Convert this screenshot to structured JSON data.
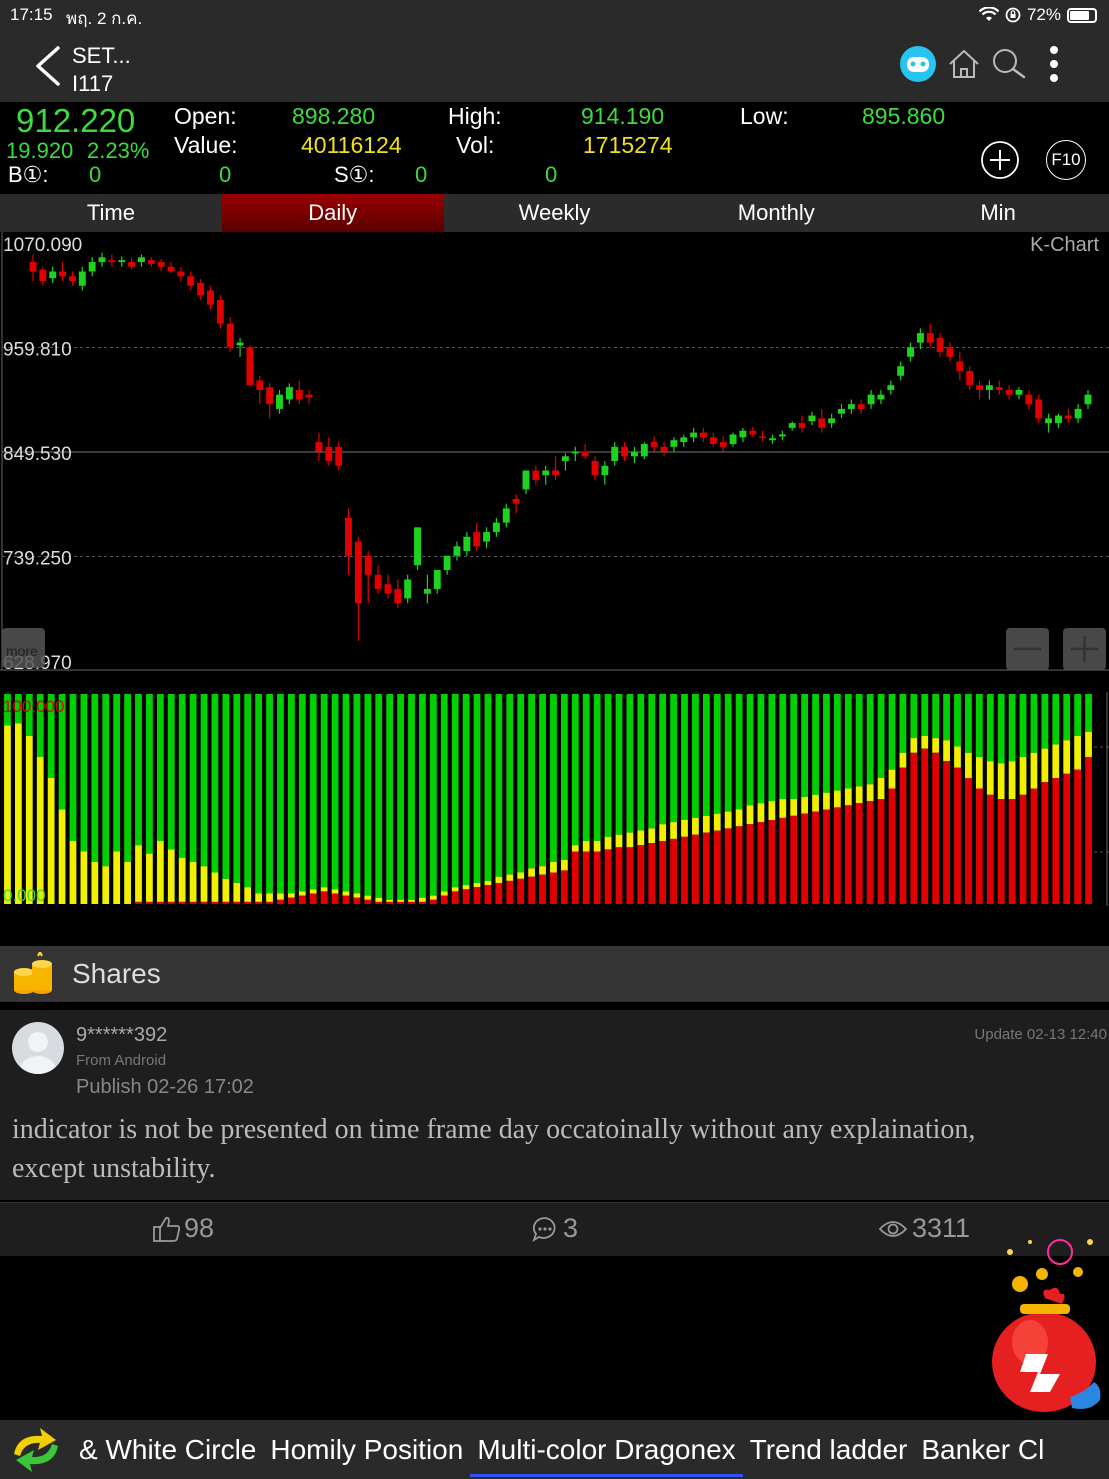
{
  "status_bar": {
    "time": "17:15",
    "date": "พฤ. 2 ก.ค.",
    "battery": "72%",
    "battery_level": 0.72
  },
  "nav": {
    "title_line1": "SET...",
    "title_line2": "I117"
  },
  "quote": {
    "last": "912.220",
    "change": "19.920",
    "change_pct": "2.23%",
    "open_label": "Open:",
    "open": "898.280",
    "high_label": "High:",
    "high": "914.190",
    "low_label": "Low:",
    "low": "895.860",
    "value_label": "Value:",
    "value": "40116124",
    "vol_label": "Vol:",
    "vol": "1715274",
    "b1_label": "B①:",
    "b1_a": "0",
    "b1_b": "0",
    "s1_label": "S①:",
    "s1_a": "0",
    "s1_b": "0",
    "f10": "F10"
  },
  "tabs": [
    {
      "label": "Time",
      "active": false
    },
    {
      "label": "Daily",
      "active": true
    },
    {
      "label": "Weekly",
      "active": false
    },
    {
      "label": "Monthly",
      "active": false
    },
    {
      "label": "Min",
      "active": false
    }
  ],
  "kchart": {
    "label": "K-Chart",
    "more_label": "more",
    "y_labels": [
      "1070.090",
      "959.810",
      "849.530",
      "739.250",
      "628.970"
    ]
  },
  "chart_data": [
    {
      "type": "candlestick",
      "ylim": [
        628.97,
        1070.09
      ],
      "y_ticks": [
        1070.09,
        959.81,
        849.53,
        739.25,
        628.97
      ],
      "ohlc": [
        [
          1050,
          1058,
          1030,
          1040
        ],
        [
          1042,
          1045,
          1025,
          1030
        ],
        [
          1033,
          1045,
          1028,
          1040
        ],
        [
          1040,
          1050,
          1030,
          1035
        ],
        [
          1035,
          1040,
          1025,
          1030
        ],
        [
          1025,
          1045,
          1020,
          1040
        ],
        [
          1040,
          1055,
          1035,
          1050
        ],
        [
          1050,
          1060,
          1045,
          1055
        ],
        [
          1052,
          1058,
          1045,
          1050
        ],
        [
          1050,
          1056,
          1045,
          1052
        ],
        [
          1050,
          1055,
          1042,
          1045
        ],
        [
          1050,
          1058,
          1045,
          1055
        ],
        [
          1052,
          1055,
          1045,
          1048
        ],
        [
          1050,
          1053,
          1040,
          1045
        ],
        [
          1045,
          1050,
          1038,
          1040
        ],
        [
          1040,
          1045,
          1030,
          1035
        ],
        [
          1035,
          1040,
          1020,
          1025
        ],
        [
          1028,
          1032,
          1010,
          1015
        ],
        [
          1020,
          1025,
          1000,
          1005
        ],
        [
          1010,
          1015,
          980,
          985
        ],
        [
          985,
          992,
          955,
          960
        ],
        [
          962,
          970,
          950,
          965
        ],
        [
          960,
          962,
          920,
          920
        ],
        [
          925,
          930,
          900,
          915
        ],
        [
          918,
          922,
          885,
          900
        ],
        [
          895,
          915,
          890,
          910
        ],
        [
          905,
          922,
          900,
          918
        ],
        [
          915,
          925,
          900,
          905
        ],
        [
          910,
          915,
          900,
          907
        ],
        [
          860,
          870,
          840,
          850
        ],
        [
          855,
          865,
          835,
          840
        ],
        [
          855,
          860,
          830,
          835
        ],
        [
          780,
          790,
          720,
          740
        ],
        [
          755,
          760,
          650,
          690
        ],
        [
          740,
          745,
          690,
          720
        ],
        [
          720,
          730,
          700,
          705
        ],
        [
          710,
          720,
          695,
          700
        ],
        [
          705,
          715,
          685,
          690
        ],
        [
          695,
          720,
          690,
          715
        ],
        [
          730,
          770,
          725,
          770
        ],
        [
          700,
          720,
          690,
          705
        ],
        [
          705,
          725,
          700,
          725
        ],
        [
          725,
          740,
          720,
          740
        ],
        [
          740,
          755,
          735,
          750
        ],
        [
          745,
          765,
          740,
          760
        ],
        [
          765,
          775,
          745,
          750
        ],
        [
          755,
          770,
          748,
          765
        ],
        [
          765,
          780,
          760,
          775
        ],
        [
          775,
          795,
          770,
          790
        ],
        [
          800,
          805,
          785,
          795
        ],
        [
          810,
          830,
          805,
          830
        ],
        [
          830,
          835,
          815,
          820
        ],
        [
          825,
          835,
          815,
          830
        ],
        [
          830,
          845,
          820,
          825
        ],
        [
          840,
          848,
          830,
          845
        ],
        [
          848,
          855,
          840,
          850
        ],
        [
          850,
          858,
          842,
          845
        ],
        [
          840,
          845,
          820,
          825
        ],
        [
          825,
          840,
          815,
          835
        ],
        [
          840,
          860,
          835,
          855
        ],
        [
          855,
          860,
          840,
          845
        ],
        [
          845,
          855,
          838,
          850
        ],
        [
          845,
          860,
          842,
          858
        ],
        [
          860,
          866,
          850,
          855
        ],
        [
          855,
          860,
          845,
          850
        ],
        [
          855,
          865,
          850,
          862
        ],
        [
          860,
          868,
          855,
          865
        ],
        [
          865,
          875,
          860,
          870
        ],
        [
          870,
          875,
          860,
          865
        ],
        [
          865,
          870,
          855,
          858
        ],
        [
          860,
          866,
          850,
          855
        ],
        [
          858,
          870,
          855,
          868
        ],
        [
          865,
          875,
          860,
          872
        ],
        [
          872,
          876,
          865,
          868
        ],
        [
          866,
          872,
          860,
          865
        ],
        [
          862,
          868,
          858,
          864
        ],
        [
          866,
          872,
          862,
          868
        ],
        [
          875,
          882,
          872,
          880
        ],
        [
          880,
          888,
          870,
          875
        ],
        [
          882,
          892,
          878,
          888
        ],
        [
          885,
          895,
          870,
          875
        ],
        [
          880,
          890,
          875,
          885
        ],
        [
          890,
          900,
          885,
          895
        ],
        [
          895,
          905,
          890,
          900
        ],
        [
          900,
          905,
          890,
          895
        ],
        [
          900,
          915,
          895,
          910
        ],
        [
          905,
          915,
          900,
          910
        ],
        [
          915,
          925,
          910,
          920
        ],
        [
          930,
          945,
          925,
          940
        ],
        [
          950,
          965,
          945,
          960
        ],
        [
          965,
          980,
          958,
          975
        ],
        [
          975,
          985,
          960,
          965
        ],
        [
          970,
          975,
          950,
          955
        ],
        [
          960,
          965,
          945,
          950
        ],
        [
          945,
          955,
          925,
          935
        ],
        [
          935,
          940,
          915,
          920
        ],
        [
          920,
          925,
          905,
          915
        ],
        [
          915,
          925,
          905,
          920
        ],
        [
          918,
          925,
          910,
          915
        ],
        [
          915,
          920,
          905,
          910
        ],
        [
          910,
          918,
          905,
          915
        ],
        [
          910,
          915,
          895,
          900
        ],
        [
          905,
          910,
          880,
          885
        ],
        [
          880,
          890,
          870,
          885
        ],
        [
          880,
          890,
          875,
          888
        ],
        [
          888,
          895,
          880,
          885
        ],
        [
          885,
          900,
          880,
          895
        ],
        [
          900,
          915,
          895,
          910
        ]
      ]
    },
    {
      "type": "stacked-bar",
      "ylim": [
        0,
        100
      ],
      "y_labels": [
        "100.000",
        "0.000"
      ],
      "series": [
        {
          "color": "#e00000"
        },
        {
          "color": "#f0f000"
        },
        {
          "color": "#00d000"
        }
      ],
      "red_yellow": [
        [
          0,
          85
        ],
        [
          0,
          86
        ],
        [
          0,
          80
        ],
        [
          0,
          70
        ],
        [
          0,
          60
        ],
        [
          0,
          45
        ],
        [
          0,
          30
        ],
        [
          0,
          25
        ],
        [
          0,
          20
        ],
        [
          0,
          18
        ],
        [
          0,
          25
        ],
        [
          0,
          20
        ],
        [
          1,
          28
        ],
        [
          1,
          24
        ],
        [
          1,
          30
        ],
        [
          1,
          26
        ],
        [
          1,
          22
        ],
        [
          1,
          20
        ],
        [
          1,
          18
        ],
        [
          1,
          15
        ],
        [
          1,
          12
        ],
        [
          1,
          10
        ],
        [
          1,
          8
        ],
        [
          1,
          5
        ],
        [
          1,
          5
        ],
        [
          2,
          5
        ],
        [
          3,
          5
        ],
        [
          4,
          6
        ],
        [
          5,
          7
        ],
        [
          6,
          8
        ],
        [
          5,
          7
        ],
        [
          4,
          6
        ],
        [
          3,
          5
        ],
        [
          2,
          4
        ],
        [
          1,
          3
        ],
        [
          1,
          2
        ],
        [
          1,
          2
        ],
        [
          1,
          2
        ],
        [
          1,
          3
        ],
        [
          2,
          4
        ],
        [
          4,
          6
        ],
        [
          6,
          8
        ],
        [
          7,
          9
        ],
        [
          8,
          10
        ],
        [
          9,
          11
        ],
        [
          10,
          13
        ],
        [
          11,
          14
        ],
        [
          12,
          15
        ],
        [
          13,
          17
        ],
        [
          14,
          18
        ],
        [
          15,
          20
        ],
        [
          16,
          21
        ],
        [
          25,
          28
        ],
        [
          25,
          30
        ],
        [
          25,
          30
        ],
        [
          26,
          32
        ],
        [
          27,
          33
        ],
        [
          27,
          34
        ],
        [
          28,
          35
        ],
        [
          29,
          36
        ],
        [
          30,
          38
        ],
        [
          31,
          39
        ],
        [
          32,
          40
        ],
        [
          33,
          41
        ],
        [
          34,
          42
        ],
        [
          35,
          43
        ],
        [
          36,
          44
        ],
        [
          37,
          45
        ],
        [
          38,
          47
        ],
        [
          39,
          48
        ],
        [
          40,
          49
        ],
        [
          41,
          50
        ],
        [
          42,
          50
        ],
        [
          43,
          51
        ],
        [
          44,
          52
        ],
        [
          45,
          53
        ],
        [
          46,
          54
        ],
        [
          47,
          55
        ],
        [
          48,
          56
        ],
        [
          49,
          57
        ],
        [
          50,
          60
        ],
        [
          55,
          64
        ],
        [
          65,
          72
        ],
        [
          72,
          79
        ],
        [
          74,
          80
        ],
        [
          72,
          79
        ],
        [
          68,
          78
        ],
        [
          65,
          75
        ],
        [
          60,
          72
        ],
        [
          55,
          70
        ],
        [
          52,
          68
        ],
        [
          50,
          67
        ],
        [
          50,
          68
        ],
        [
          52,
          70
        ],
        [
          55,
          72
        ],
        [
          58,
          74
        ],
        [
          60,
          76
        ],
        [
          62,
          78
        ],
        [
          64,
          80
        ],
        [
          70,
          82
        ]
      ]
    }
  ],
  "indicator": {
    "top_label": "100.000",
    "bottom_label": "0.000"
  },
  "shares": {
    "title": "Shares",
    "post": {
      "user": "9******392",
      "source": "From Android",
      "publish": "Publish 02-26 17:02",
      "update": "Update 02-13 12:40",
      "body": "indicator is not be presented on time frame day occatoinally without any explaination, except unstability.",
      "likes": "98",
      "comments": "3",
      "views": "3311"
    }
  },
  "bottom_tabs": [
    {
      "label": "& White Circle",
      "active": false
    },
    {
      "label": "Homily Position",
      "active": false
    },
    {
      "label": "Multi-color Dragonex",
      "active": true
    },
    {
      "label": "Trend ladder",
      "active": false
    },
    {
      "label": "Banker Cl",
      "active": false
    }
  ]
}
